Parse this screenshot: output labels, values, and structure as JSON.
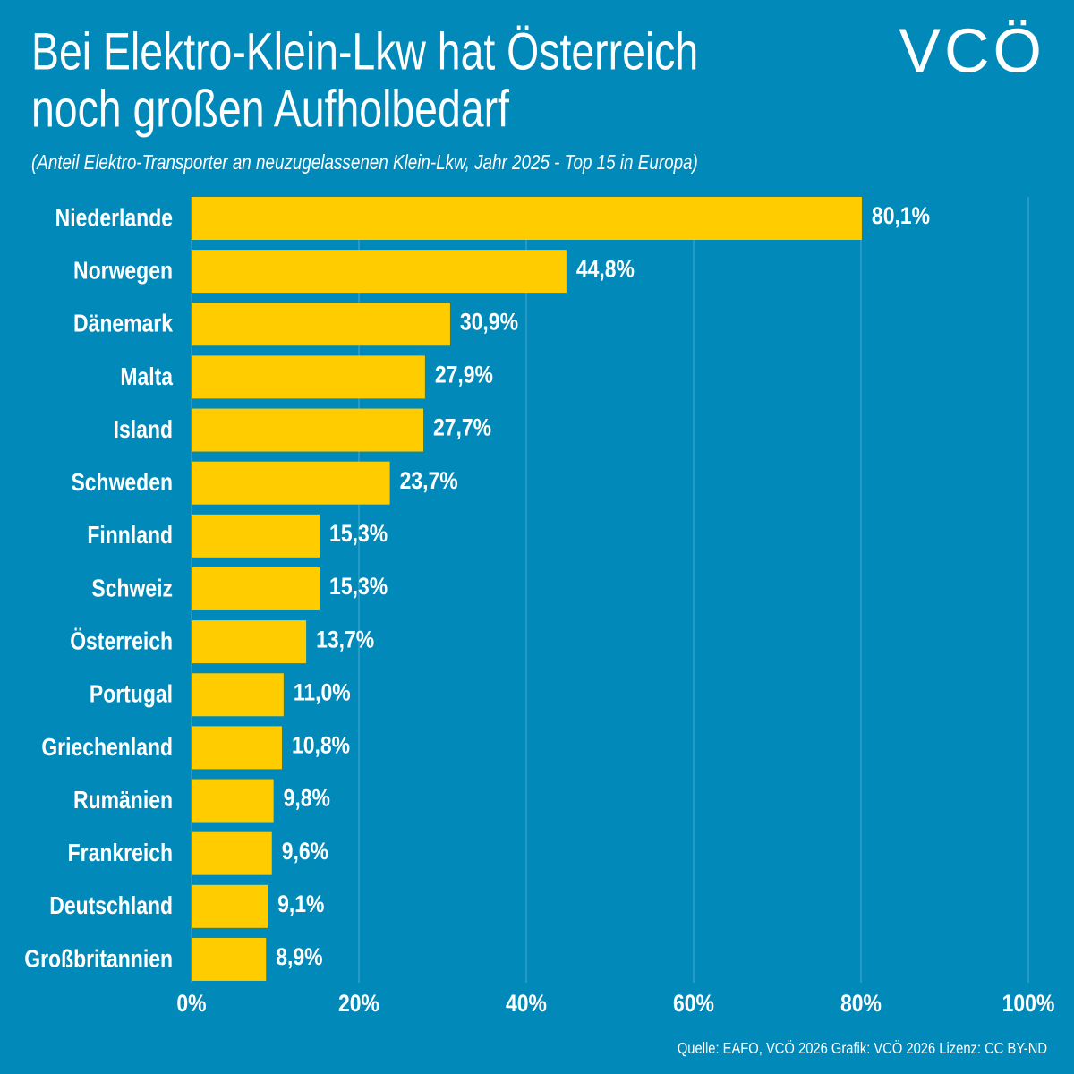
{
  "chart_data": {
    "type": "hbar",
    "title": [
      "Bei Elektro-Klein-Lkw hat Österreich",
      "noch großen Aufholbedarf"
    ],
    "subtitle": "(Anteil Elektro-Transporter an neuzugelassenen Klein-Lkw, Jahr 2025 - Top 15 in Europa)",
    "logo": "VCÖ",
    "source": "Quelle: EAFO, VCÖ 2026 Grafik: VCÖ 2026 Lizenz: CC BY-ND",
    "categories": [
      "Niederlande",
      "Norwegen",
      "Dänemark",
      "Malta",
      "Island",
      "Schweden",
      "Finnland",
      "Schweiz",
      "Österreich",
      "Portugal",
      "Griechenland",
      "Rumänien",
      "Frankreich",
      "Deutschland",
      "Großbritannien"
    ],
    "values": [
      80.1,
      44.8,
      30.9,
      27.9,
      27.7,
      23.7,
      15.3,
      15.3,
      13.7,
      11.0,
      10.8,
      9.8,
      9.6,
      9.1,
      8.9
    ],
    "value_labels": [
      "80,1%",
      "44,8%",
      "30,9%",
      "27,9%",
      "27,7%",
      "23,7%",
      "15,3%",
      "15,3%",
      "13,7%",
      "11,0%",
      "10,8%",
      "9,8%",
      "9,6%",
      "9,1%",
      "8,9%"
    ],
    "color": "#ffcc00",
    "xlim": [
      0,
      100
    ],
    "xticks": [
      {
        "value": 0,
        "label": "0%"
      },
      {
        "value": 20,
        "label": "20%"
      },
      {
        "value": 40,
        "label": "40%"
      },
      {
        "value": 60,
        "label": "60%"
      },
      {
        "value": 80,
        "label": "80%"
      },
      {
        "value": 100,
        "label": "100%"
      }
    ],
    "grid": true
  }
}
